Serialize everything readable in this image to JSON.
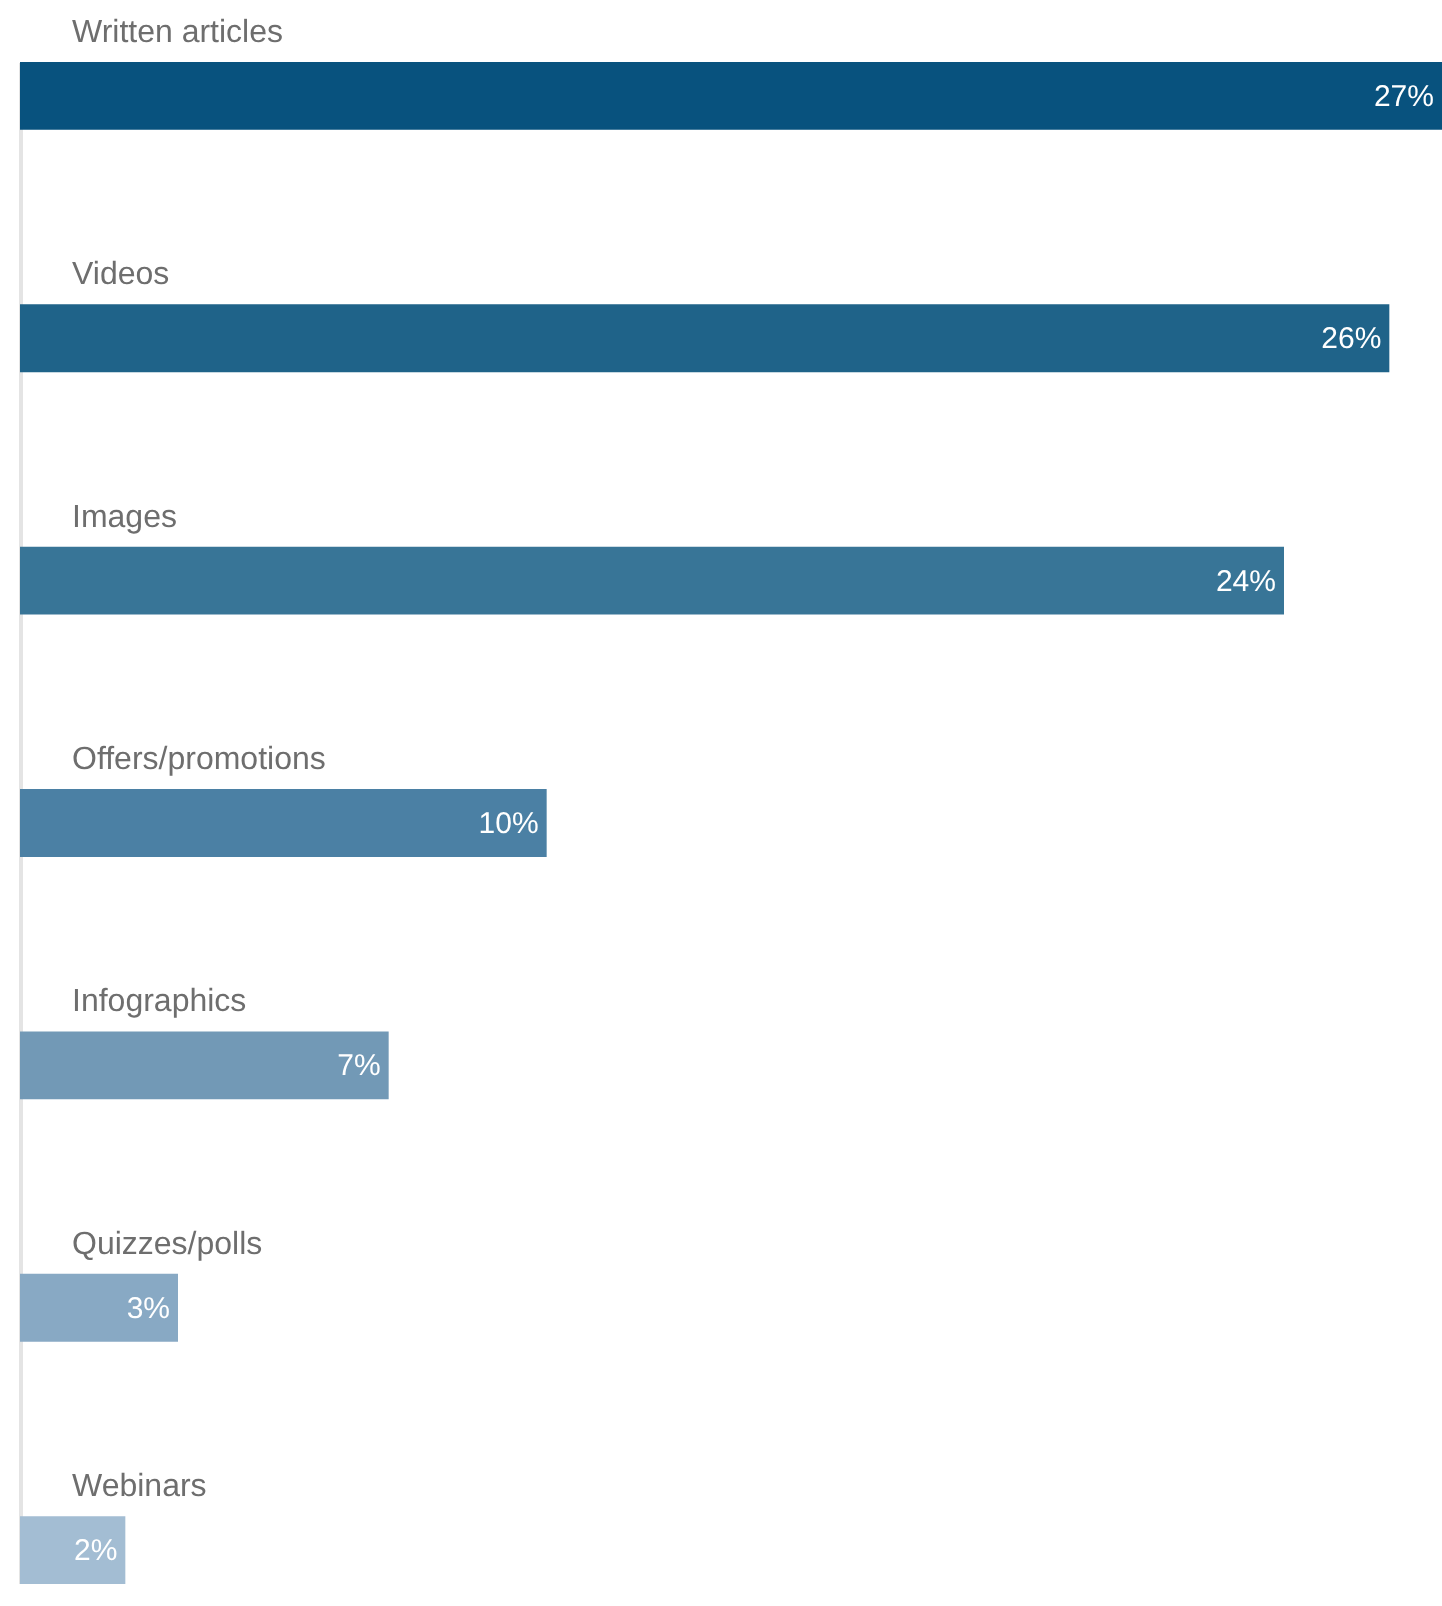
{
  "chart_data": {
    "type": "bar",
    "orientation": "horizontal",
    "categories": [
      "Written articles",
      "Videos",
      "Images",
      "Offers/promotions",
      "Infographics",
      "Quizzes/polls",
      "Webinars"
    ],
    "values": [
      27,
      26,
      24,
      10,
      7,
      3,
      2
    ],
    "value_labels": [
      "27%",
      "26%",
      "24%",
      "10%",
      "7%",
      "3%",
      "2%"
    ],
    "colors": [
      "#08527e",
      "#1f6389",
      "#387597",
      "#4b80a4",
      "#7299b6",
      "#88a9c4",
      "#a3bdd3"
    ]
  }
}
